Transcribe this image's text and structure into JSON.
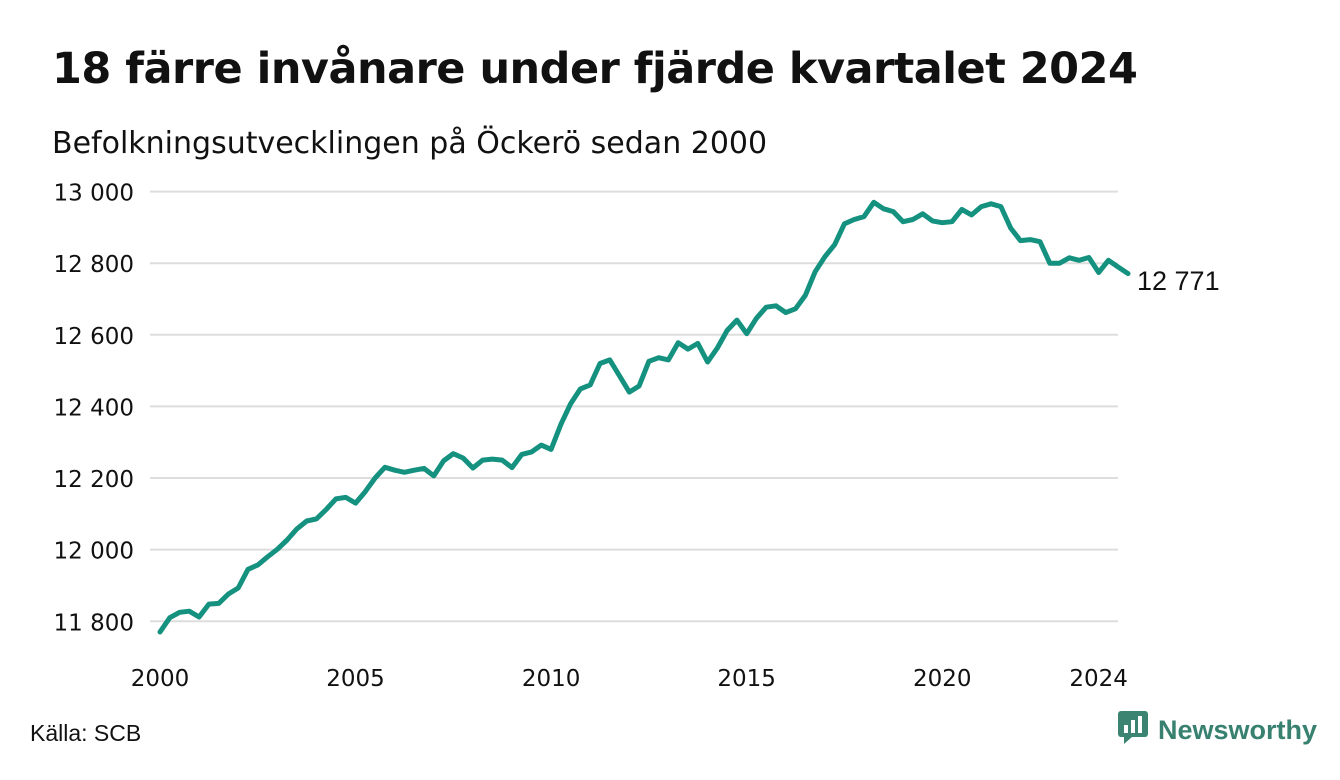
{
  "title": "18 färre invånare under fjärde kvartalet 2024",
  "subtitle": "Befolkningsutvecklingen på Öckerö sedan 2000",
  "source": "Källa: SCB",
  "brand": {
    "name": "Newsworthy",
    "icon": "newsworthy-logo-icon",
    "color": "#3a8471"
  },
  "colors": {
    "line": "#14917f",
    "grid": "#dddddd",
    "text": "#111111"
  },
  "chart_data": {
    "type": "line",
    "title": "18 färre invånare under fjärde kvartalet 2024",
    "subtitle": "Befolkningsutvecklingen på Öckerö sedan 2000",
    "xlabel": "",
    "ylabel": "",
    "x_ticks": [
      "2000",
      "2005",
      "2010",
      "2015",
      "2020",
      "2024"
    ],
    "y_ticks": [
      "11 800",
      "12 000",
      "12 200",
      "12 400",
      "12 600",
      "12 800",
      "13 000"
    ],
    "ylim": [
      11770,
      13010
    ],
    "grid": "horizontal",
    "end_label": "12 771",
    "series": [
      {
        "x": [
          2000.0,
          2000.25,
          2000.5,
          2000.75,
          2001.0,
          2001.25,
          2001.5,
          2001.75,
          2002.0,
          2002.25,
          2002.5,
          2002.75,
          2003.0,
          2003.25,
          2003.5,
          2003.75,
          2004.0,
          2004.25,
          2004.5,
          2004.75,
          2005.0,
          2005.25,
          2005.5,
          2005.75,
          2006.0,
          2006.25,
          2006.5,
          2006.75,
          2007.0,
          2007.25,
          2007.5,
          2007.75,
          2008.0,
          2008.25,
          2008.5,
          2008.75,
          2009.0,
          2009.25,
          2009.5,
          2009.75,
          2010.0,
          2010.25,
          2010.5,
          2010.75,
          2011.0,
          2011.25,
          2011.5,
          2011.75,
          2012.0,
          2012.25,
          2012.5,
          2012.75,
          2013.0,
          2013.25,
          2013.5,
          2013.75,
          2014.0,
          2014.25,
          2014.5,
          2014.75,
          2015.0,
          2015.25,
          2015.5,
          2015.75,
          2016.0,
          2016.25,
          2016.5,
          2016.75,
          2017.0,
          2017.25,
          2017.5,
          2017.75,
          2018.0,
          2018.25,
          2018.5,
          2018.75,
          2019.0,
          2019.25,
          2019.5,
          2019.75,
          2020.0,
          2020.25,
          2020.5,
          2020.75,
          2021.0,
          2021.25,
          2021.5,
          2021.75,
          2022.0,
          2022.25,
          2022.5,
          2022.75,
          2023.0,
          2023.25,
          2023.5,
          2023.75,
          2024.0,
          2024.25,
          2024.5,
          2024.75
        ],
        "values": [
          11770,
          11810,
          11825,
          11828,
          11812,
          11848,
          11850,
          11876,
          11893,
          11945,
          11957,
          11980,
          12001,
          12027,
          12058,
          12080,
          12086,
          12112,
          12142,
          12146,
          12130,
          12162,
          12200,
          12230,
          12222,
          12216,
          12222,
          12227,
          12206,
          12248,
          12268,
          12256,
          12228,
          12250,
          12253,
          12250,
          12229,
          12266,
          12273,
          12292,
          12280,
          12350,
          12408,
          12449,
          12460,
          12520,
          12530,
          12485,
          12440,
          12457,
          12526,
          12536,
          12530,
          12578,
          12560,
          12576,
          12524,
          12563,
          12612,
          12641,
          12603,
          12646,
          12677,
          12681,
          12662,
          12673,
          12710,
          12776,
          12818,
          12852,
          12910,
          12922,
          12930,
          12970,
          12952,
          12944,
          12916,
          12922,
          12938,
          12918,
          12913,
          12916,
          12950,
          12935,
          12958,
          12966,
          12958,
          12898,
          12863,
          12866,
          12860,
          12800,
          12800,
          12815,
          12808,
          12816,
          12774,
          12808,
          12789,
          12771
        ]
      }
    ]
  }
}
